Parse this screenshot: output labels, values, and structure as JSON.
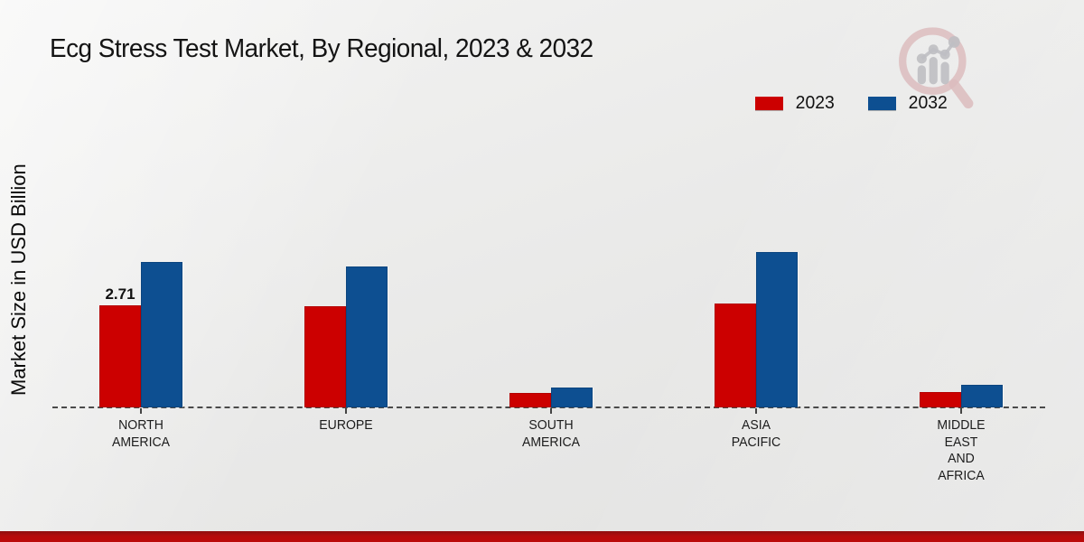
{
  "chart_data": {
    "type": "bar",
    "title": "Ecg Stress Test Market, By Regional, 2023 & 2032",
    "ylabel": "Market Size in USD Billion",
    "xlabel": "",
    "categories": [
      "NORTH AMERICA",
      "EUROPE",
      "SOUTH AMERICA",
      "ASIA PACIFIC",
      "MIDDLE EAST AND AFRICA"
    ],
    "series": [
      {
        "name": "2023",
        "color": "#cc0000",
        "values": [
          2.71,
          2.67,
          0.39,
          2.74,
          0.4
        ]
      },
      {
        "name": "2032",
        "color": "#0d4f91",
        "values": [
          3.85,
          3.74,
          0.52,
          4.11,
          0.59
        ]
      }
    ],
    "data_labels": [
      {
        "series_index": 0,
        "category_index": 0,
        "text": "2.71"
      }
    ],
    "ylim": [
      0,
      4.5
    ],
    "grid": false,
    "baseline_style": "dashed",
    "legend_position": "top-right"
  },
  "footer": {
    "accent_color": "#b50b0b"
  },
  "watermark": {
    "icon": "bar-chart-magnifier-logo"
  }
}
